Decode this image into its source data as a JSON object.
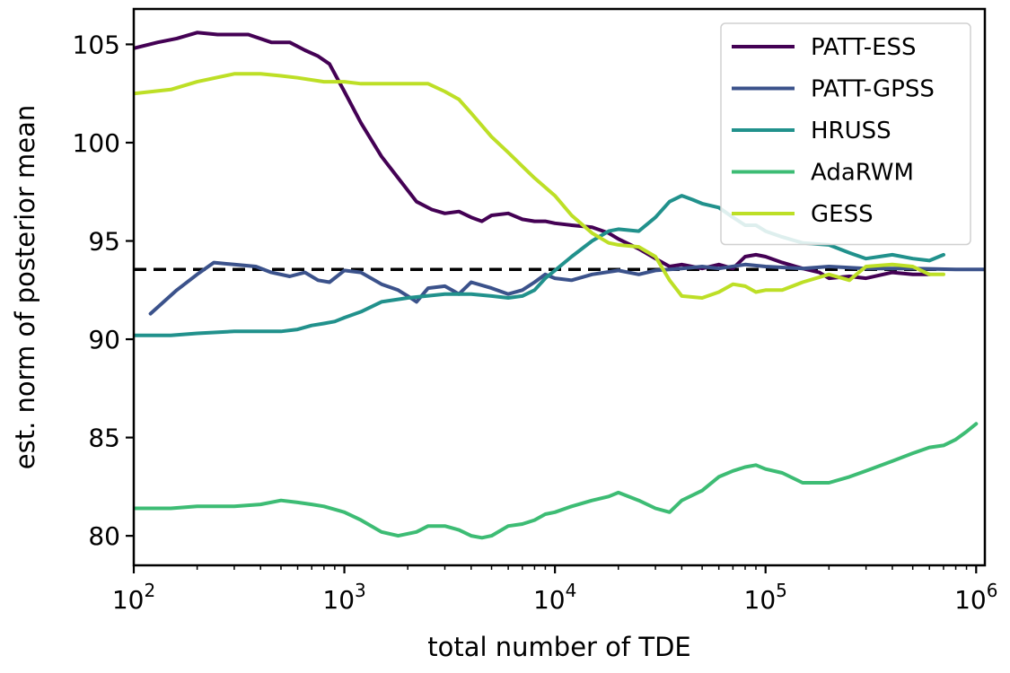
{
  "chart_data": {
    "type": "line",
    "title": "",
    "xlabel": "total number of TDE",
    "ylabel": "est. norm of posterior mean",
    "xscale": "log",
    "xlim": [
      100,
      1100000
    ],
    "ylim": [
      78.5,
      106.8
    ],
    "x_ticks": [
      {
        "value": 100,
        "base": "10",
        "exp": "2"
      },
      {
        "value": 1000,
        "base": "10",
        "exp": "3"
      },
      {
        "value": 10000,
        "base": "10",
        "exp": "4"
      },
      {
        "value": 100000,
        "base": "10",
        "exp": "5"
      },
      {
        "value": 1000000,
        "base": "10",
        "exp": "6"
      }
    ],
    "y_ticks": [
      80,
      85,
      90,
      95,
      100,
      105
    ],
    "grid": false,
    "legend_position": "top-right",
    "reference_line": {
      "y": 93.55,
      "style": "dashed",
      "color": "#000000"
    },
    "series": [
      {
        "name": "PATT-ESS",
        "color": "#440154",
        "points": [
          [
            100,
            104.8
          ],
          [
            130,
            105.1
          ],
          [
            160,
            105.3
          ],
          [
            200,
            105.6
          ],
          [
            250,
            105.5
          ],
          [
            350,
            105.5
          ],
          [
            450,
            105.1
          ],
          [
            550,
            105.1
          ],
          [
            650,
            104.7
          ],
          [
            750,
            104.4
          ],
          [
            850,
            104.0
          ],
          [
            1000,
            102.6
          ],
          [
            1200,
            101.0
          ],
          [
            1500,
            99.3
          ],
          [
            1800,
            98.2
          ],
          [
            2200,
            97.0
          ],
          [
            2600,
            96.6
          ],
          [
            3000,
            96.4
          ],
          [
            3500,
            96.5
          ],
          [
            4000,
            96.2
          ],
          [
            4500,
            96.0
          ],
          [
            5000,
            96.3
          ],
          [
            6000,
            96.4
          ],
          [
            7000,
            96.1
          ],
          [
            8000,
            96.0
          ],
          [
            9000,
            96.0
          ],
          [
            10000,
            95.9
          ],
          [
            12000,
            95.8
          ],
          [
            15000,
            95.7
          ],
          [
            18000,
            95.4
          ],
          [
            20000,
            95.1
          ],
          [
            25000,
            94.6
          ],
          [
            30000,
            94.1
          ],
          [
            35000,
            93.7
          ],
          [
            40000,
            93.8
          ],
          [
            50000,
            93.6
          ],
          [
            60000,
            93.8
          ],
          [
            70000,
            93.6
          ],
          [
            80000,
            94.2
          ],
          [
            90000,
            94.3
          ],
          [
            100000,
            94.2
          ],
          [
            120000,
            93.9
          ],
          [
            150000,
            93.6
          ],
          [
            180000,
            93.4
          ],
          [
            200000,
            93.1
          ],
          [
            250000,
            93.2
          ],
          [
            300000,
            93.1
          ],
          [
            400000,
            93.4
          ],
          [
            500000,
            93.3
          ],
          [
            600000,
            93.3
          ]
        ]
      },
      {
        "name": "PATT-GPSS",
        "color": "#3b528b",
        "points": [
          [
            120,
            91.3
          ],
          [
            160,
            92.5
          ],
          [
            200,
            93.3
          ],
          [
            240,
            93.9
          ],
          [
            300,
            93.8
          ],
          [
            380,
            93.7
          ],
          [
            450,
            93.4
          ],
          [
            550,
            93.2
          ],
          [
            650,
            93.4
          ],
          [
            750,
            93.0
          ],
          [
            850,
            92.9
          ],
          [
            1000,
            93.5
          ],
          [
            1200,
            93.4
          ],
          [
            1500,
            92.8
          ],
          [
            1800,
            92.5
          ],
          [
            2000,
            92.2
          ],
          [
            2200,
            91.9
          ],
          [
            2500,
            92.6
          ],
          [
            3000,
            92.7
          ],
          [
            3500,
            92.3
          ],
          [
            4000,
            92.9
          ],
          [
            5000,
            92.6
          ],
          [
            6000,
            92.3
          ],
          [
            7000,
            92.5
          ],
          [
            8000,
            92.9
          ],
          [
            9000,
            93.3
          ],
          [
            10000,
            93.1
          ],
          [
            12000,
            93.0
          ],
          [
            15000,
            93.3
          ],
          [
            20000,
            93.5
          ],
          [
            25000,
            93.3
          ],
          [
            30000,
            93.5
          ],
          [
            40000,
            93.6
          ],
          [
            50000,
            93.7
          ],
          [
            60000,
            93.6
          ],
          [
            80000,
            93.8
          ],
          [
            100000,
            93.7
          ],
          [
            150000,
            93.6
          ],
          [
            200000,
            93.7
          ],
          [
            300000,
            93.6
          ],
          [
            500000,
            93.6
          ],
          [
            800000,
            93.55
          ],
          [
            1100000,
            93.55
          ]
        ]
      },
      {
        "name": "HRUSS",
        "color": "#21918c",
        "points": [
          [
            100,
            90.2
          ],
          [
            150,
            90.2
          ],
          [
            200,
            90.3
          ],
          [
            300,
            90.4
          ],
          [
            400,
            90.4
          ],
          [
            500,
            90.4
          ],
          [
            600,
            90.5
          ],
          [
            700,
            90.7
          ],
          [
            800,
            90.8
          ],
          [
            900,
            90.9
          ],
          [
            1000,
            91.1
          ],
          [
            1200,
            91.4
          ],
          [
            1500,
            91.9
          ],
          [
            2000,
            92.1
          ],
          [
            3000,
            92.3
          ],
          [
            4000,
            92.3
          ],
          [
            5000,
            92.2
          ],
          [
            6000,
            92.1
          ],
          [
            7000,
            92.2
          ],
          [
            8000,
            92.5
          ],
          [
            9000,
            93.1
          ],
          [
            10000,
            93.5
          ],
          [
            12000,
            94.2
          ],
          [
            15000,
            95.0
          ],
          [
            18000,
            95.5
          ],
          [
            20000,
            95.6
          ],
          [
            25000,
            95.5
          ],
          [
            30000,
            96.2
          ],
          [
            35000,
            97.0
          ],
          [
            40000,
            97.3
          ],
          [
            45000,
            97.1
          ],
          [
            50000,
            96.9
          ],
          [
            60000,
            96.7
          ],
          [
            70000,
            96.2
          ],
          [
            80000,
            95.8
          ],
          [
            90000,
            95.8
          ],
          [
            100000,
            95.5
          ],
          [
            120000,
            95.2
          ],
          [
            150000,
            94.9
          ],
          [
            200000,
            94.8
          ],
          [
            250000,
            94.4
          ],
          [
            300000,
            94.1
          ],
          [
            400000,
            94.3
          ],
          [
            500000,
            94.1
          ],
          [
            600000,
            94.0
          ],
          [
            700000,
            94.3
          ]
        ]
      },
      {
        "name": "AdaRWM",
        "color": "#3dbc74",
        "points": [
          [
            100,
            81.4
          ],
          [
            150,
            81.4
          ],
          [
            200,
            81.5
          ],
          [
            300,
            81.5
          ],
          [
            400,
            81.6
          ],
          [
            500,
            81.8
          ],
          [
            600,
            81.7
          ],
          [
            700,
            81.6
          ],
          [
            800,
            81.5
          ],
          [
            1000,
            81.2
          ],
          [
            1200,
            80.8
          ],
          [
            1500,
            80.2
          ],
          [
            1800,
            80.0
          ],
          [
            2200,
            80.2
          ],
          [
            2500,
            80.5
          ],
          [
            3000,
            80.5
          ],
          [
            3500,
            80.3
          ],
          [
            4000,
            80.0
          ],
          [
            4500,
            79.9
          ],
          [
            5000,
            80.0
          ],
          [
            6000,
            80.5
          ],
          [
            7000,
            80.6
          ],
          [
            8000,
            80.8
          ],
          [
            9000,
            81.1
          ],
          [
            10000,
            81.2
          ],
          [
            12000,
            81.5
          ],
          [
            15000,
            81.8
          ],
          [
            18000,
            82.0
          ],
          [
            20000,
            82.2
          ],
          [
            25000,
            81.8
          ],
          [
            30000,
            81.4
          ],
          [
            35000,
            81.2
          ],
          [
            40000,
            81.8
          ],
          [
            50000,
            82.3
          ],
          [
            60000,
            83.0
          ],
          [
            70000,
            83.3
          ],
          [
            80000,
            83.5
          ],
          [
            90000,
            83.6
          ],
          [
            100000,
            83.4
          ],
          [
            120000,
            83.2
          ],
          [
            150000,
            82.7
          ],
          [
            200000,
            82.7
          ],
          [
            250000,
            83.0
          ],
          [
            300000,
            83.3
          ],
          [
            400000,
            83.8
          ],
          [
            500000,
            84.2
          ],
          [
            600000,
            84.5
          ],
          [
            700000,
            84.6
          ],
          [
            800000,
            84.9
          ],
          [
            900000,
            85.3
          ],
          [
            1000000,
            85.7
          ]
        ]
      },
      {
        "name": "GESS",
        "color": "#bddf26",
        "points": [
          [
            100,
            102.5
          ],
          [
            150,
            102.7
          ],
          [
            200,
            103.1
          ],
          [
            300,
            103.5
          ],
          [
            400,
            103.5
          ],
          [
            500,
            103.4
          ],
          [
            600,
            103.3
          ],
          [
            800,
            103.1
          ],
          [
            1000,
            103.1
          ],
          [
            1200,
            103.0
          ],
          [
            1500,
            103.0
          ],
          [
            2000,
            103.0
          ],
          [
            2500,
            103.0
          ],
          [
            3000,
            102.6
          ],
          [
            3500,
            102.2
          ],
          [
            4000,
            101.5
          ],
          [
            5000,
            100.3
          ],
          [
            6000,
            99.5
          ],
          [
            7000,
            98.8
          ],
          [
            8000,
            98.2
          ],
          [
            10000,
            97.3
          ],
          [
            12000,
            96.3
          ],
          [
            15000,
            95.4
          ],
          [
            18000,
            94.9
          ],
          [
            20000,
            94.8
          ],
          [
            25000,
            94.7
          ],
          [
            30000,
            94.2
          ],
          [
            35000,
            93.0
          ],
          [
            40000,
            92.2
          ],
          [
            50000,
            92.1
          ],
          [
            60000,
            92.4
          ],
          [
            70000,
            92.8
          ],
          [
            80000,
            92.7
          ],
          [
            90000,
            92.4
          ],
          [
            100000,
            92.5
          ],
          [
            120000,
            92.5
          ],
          [
            150000,
            92.9
          ],
          [
            200000,
            93.3
          ],
          [
            250000,
            93.0
          ],
          [
            300000,
            93.7
          ],
          [
            400000,
            93.8
          ],
          [
            500000,
            93.7
          ],
          [
            600000,
            93.3
          ],
          [
            700000,
            93.3
          ]
        ]
      }
    ]
  }
}
